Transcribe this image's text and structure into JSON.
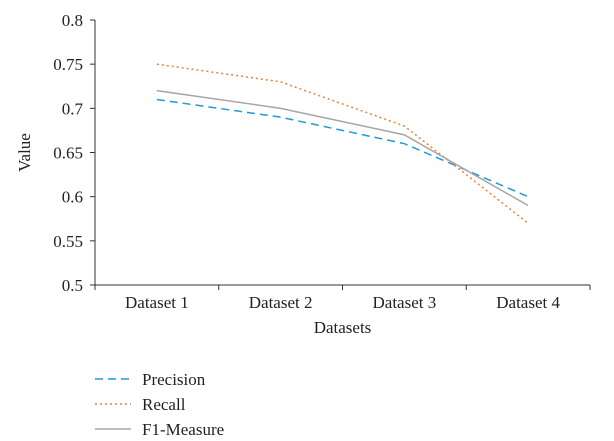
{
  "chart_data": {
    "type": "line",
    "categories": [
      "Dataset 1",
      "Dataset 2",
      "Dataset 3",
      "Dataset 4"
    ],
    "series": [
      {
        "name": "Precision",
        "values": [
          0.71,
          0.69,
          0.66,
          0.6
        ],
        "color": "#1f9bd6",
        "dash": "dashed"
      },
      {
        "name": "Recall",
        "values": [
          0.75,
          0.73,
          0.68,
          0.57
        ],
        "color": "#f07f2e",
        "dash": "dotted"
      },
      {
        "name": "F1-Measure",
        "values": [
          0.72,
          0.7,
          0.67,
          0.59
        ],
        "color": "#a6a6a6",
        "dash": "solid"
      }
    ],
    "xlabel": "Datasets",
    "ylabel": "Value",
    "ylim": [
      0.5,
      0.8
    ],
    "yticks": [
      0.5,
      0.55,
      0.6,
      0.65,
      0.7,
      0.75,
      0.8
    ],
    "ytick_labels": [
      "0.5",
      "0.55",
      "0.6",
      "0.65",
      "0.7",
      "0.75",
      "0.8"
    ],
    "grid": false,
    "legend_position": "bottom-left"
  }
}
